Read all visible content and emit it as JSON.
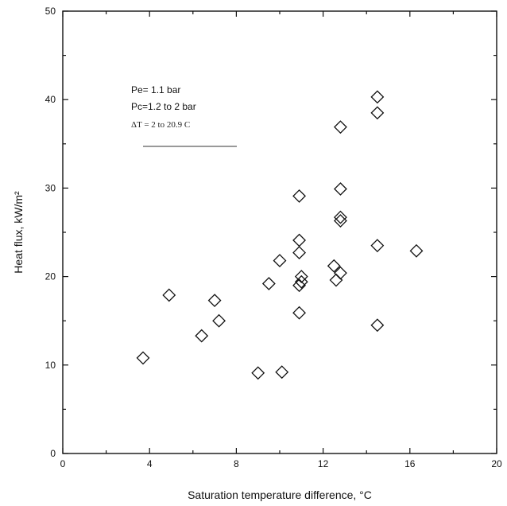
{
  "chart_data": {
    "type": "scatter",
    "xlabel": "Saturation temperature difference, °C",
    "ylabel": "Heat flux, kW/m²",
    "xlim": [
      0,
      20
    ],
    "ylim": [
      0,
      50
    ],
    "xticks": [
      0,
      4,
      8,
      12,
      16,
      20
    ],
    "yticks": [
      0,
      10,
      20,
      30,
      40,
      50
    ],
    "xtick_labels": [
      "0",
      "4",
      "8",
      "12",
      "16",
      "20"
    ],
    "ytick_labels": [
      "0",
      "10",
      "20",
      "30",
      "40",
      "50"
    ],
    "grid": false,
    "marker": "diamond",
    "annotation": {
      "line1": "Pe= 1.1 bar",
      "line2": "Pc=1.2 to 2 bar",
      "line3": "ΔT  = 2 to 20.9 C"
    },
    "series": [
      {
        "points": [
          [
            3.7,
            10.8
          ],
          [
            4.9,
            17.9
          ],
          [
            6.4,
            13.3
          ],
          [
            7.0,
            17.3
          ],
          [
            7.2,
            15.0
          ],
          [
            9.0,
            9.1
          ],
          [
            9.5,
            19.2
          ],
          [
            10.0,
            21.8
          ],
          [
            10.1,
            9.2
          ],
          [
            10.9,
            15.9
          ],
          [
            10.9,
            19.0
          ],
          [
            10.9,
            22.7
          ],
          [
            10.9,
            24.1
          ],
          [
            10.9,
            29.1
          ],
          [
            11.0,
            19.4
          ],
          [
            11.0,
            20.0
          ],
          [
            12.5,
            21.2
          ],
          [
            12.6,
            19.6
          ],
          [
            12.8,
            20.4
          ],
          [
            12.8,
            26.3
          ],
          [
            12.8,
            26.7
          ],
          [
            12.8,
            29.9
          ],
          [
            12.8,
            36.9
          ],
          [
            14.5,
            14.5
          ],
          [
            14.5,
            23.5
          ],
          [
            14.5,
            38.5
          ],
          [
            14.5,
            40.3
          ],
          [
            16.3,
            22.9
          ]
        ]
      }
    ]
  }
}
